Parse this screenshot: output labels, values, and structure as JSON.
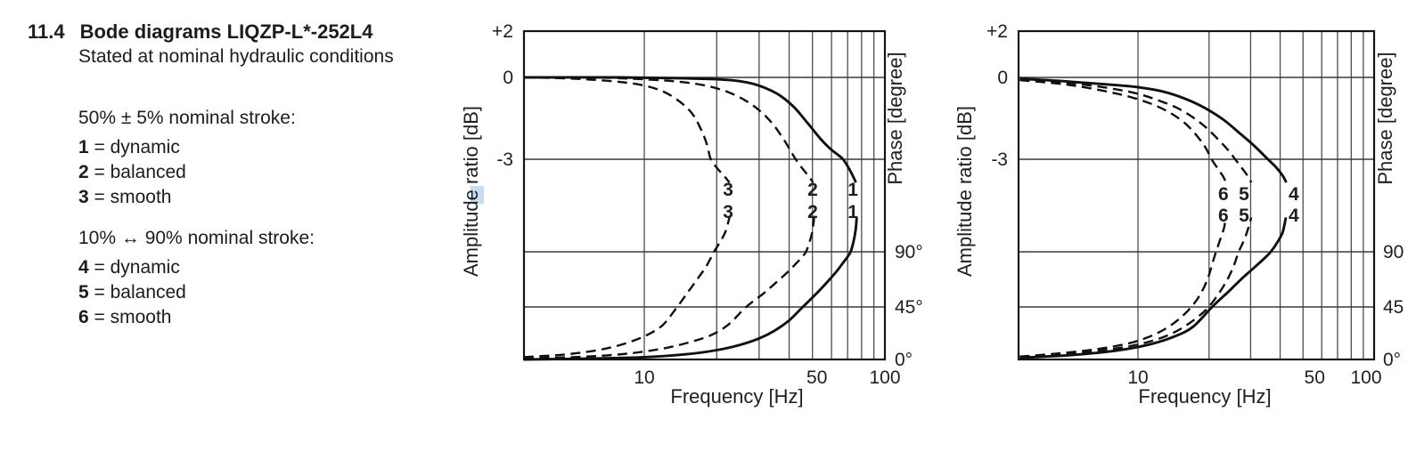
{
  "document": {
    "section_number": "11.4",
    "title": "Bode diagrams LIQZP-L*-252L4",
    "subtitle": "Stated at nominal hydraulic conditions",
    "legend_groups": [
      {
        "heading": "50% ± 5% nominal stroke:",
        "items": [
          {
            "key": "1",
            "separator": " = ",
            "label": "dynamic"
          },
          {
            "key": "2",
            "separator": " = ",
            "label": "balanced"
          },
          {
            "key": "3",
            "separator": " = ",
            "label": "smooth"
          }
        ]
      },
      {
        "heading": "10% ↔ 90% nominal stroke:",
        "items": [
          {
            "key": "4",
            "separator": " = ",
            "label": "dynamic"
          },
          {
            "key": "5",
            "separator": " = ",
            "label": "balanced"
          },
          {
            "key": "6",
            "separator": " = ",
            "label": "smooth"
          }
        ]
      }
    ]
  },
  "chart_data": [
    {
      "type": "line",
      "stroke_condition": "50% ± 5% nominal stroke",
      "xlabel": "Frequency [Hz]",
      "ylabel_left": "Amplitude ratio [dB]",
      "ylabel_right": "Phase [degree]",
      "x_scale": "log",
      "x_range_hz": [
        3.16,
        100
      ],
      "grid": true,
      "x_gridlines_hz": [
        10,
        20,
        30,
        40,
        50,
        60,
        70,
        80,
        90,
        100
      ],
      "x_ticks": [
        {
          "f": 10,
          "label": "10"
        },
        {
          "f": 50,
          "label": "50"
        },
        {
          "f": 100,
          "label": "100"
        }
      ],
      "amplitude_ticks": [
        {
          "db": 2,
          "label": "+2"
        },
        {
          "db": 0,
          "label": "0"
        },
        {
          "db": -3,
          "label": "-3"
        }
      ],
      "amplitude_gridlines_db": [
        0,
        -3
      ],
      "phase_ticks": [
        {
          "deg": 90,
          "label": "90°"
        },
        {
          "deg": 45,
          "label": "45°"
        },
        {
          "deg": 0,
          "label": "0°"
        }
      ],
      "phase_gridlines_deg": [
        90,
        45
      ],
      "curves": [
        {
          "id": "3",
          "meaning": "smooth",
          "style": "dashed",
          "f_minus3db_hz": 18.9,
          "f_phase90_hz": 19.5,
          "amplitude_db_points": [
            [
              3.16,
              0
            ],
            [
              4.5,
              -0.03
            ],
            [
              6,
              -0.08
            ],
            [
              8,
              -0.17
            ],
            [
              10,
              -0.3
            ],
            [
              12,
              -0.52
            ],
            [
              14,
              -0.88
            ],
            [
              15.8,
              -1.32
            ],
            [
              17.2,
              -1.9
            ],
            [
              18.2,
              -2.45
            ],
            [
              18.9,
              -3.0
            ],
            [
              20.2,
              -3.35
            ],
            [
              21.5,
              -3.62
            ],
            [
              22.6,
              -3.85
            ]
          ],
          "phase_deg_points": [
            [
              3.16,
              2
            ],
            [
              4.5,
              4
            ],
            [
              6,
              7
            ],
            [
              7.5,
              11
            ],
            [
              9,
              16
            ],
            [
              10.5,
              22
            ],
            [
              12,
              30
            ],
            [
              13.7,
              45
            ],
            [
              15.3,
              58
            ],
            [
              16.8,
              69
            ],
            [
              18.2,
              79
            ],
            [
              19.5,
              90
            ],
            [
              20.8,
              99
            ],
            [
              21.8,
              107
            ],
            [
              22.6,
              118
            ]
          ]
        },
        {
          "id": "2",
          "meaning": "balanced",
          "style": "dashed",
          "f_minus3db_hz": 42.6,
          "f_phase90_hz": 47,
          "amplitude_db_points": [
            [
              3.16,
              0
            ],
            [
              6,
              0
            ],
            [
              10,
              -0.07
            ],
            [
              14,
              -0.16
            ],
            [
              18,
              -0.3
            ],
            [
              22,
              -0.52
            ],
            [
              26,
              -0.82
            ],
            [
              30,
              -1.2
            ],
            [
              34,
              -1.68
            ],
            [
              37.5,
              -2.2
            ],
            [
              40,
              -2.6
            ],
            [
              42.6,
              -3.0
            ],
            [
              45.5,
              -3.35
            ],
            [
              48.2,
              -3.62
            ],
            [
              50.3,
              -3.85
            ]
          ],
          "phase_deg_points": [
            [
              3.16,
              1
            ],
            [
              5,
              2
            ],
            [
              7,
              3.5
            ],
            [
              9.4,
              6
            ],
            [
              12.4,
              10
            ],
            [
              15.6,
              15
            ],
            [
              19,
              21
            ],
            [
              22.4,
              30
            ],
            [
              26.5,
              45
            ],
            [
              31.3,
              56
            ],
            [
              35.8,
              66
            ],
            [
              39.7,
              74
            ],
            [
              43,
              81
            ],
            [
              45.4,
              86
            ],
            [
              47,
              90
            ],
            [
              48.6,
              98
            ],
            [
              50,
              107
            ],
            [
              50.8,
              118
            ]
          ]
        },
        {
          "id": "1",
          "meaning": "dynamic",
          "style": "solid",
          "f_minus3db_hz": 67,
          "f_phase90_hz": 72,
          "amplitude_db_points": [
            [
              3.16,
              0
            ],
            [
              8,
              0
            ],
            [
              14,
              -0.03
            ],
            [
              20,
              -0.07
            ],
            [
              25,
              -0.14
            ],
            [
              30,
              -0.3
            ],
            [
              36,
              -0.62
            ],
            [
              42,
              -1.1
            ],
            [
              48,
              -1.7
            ],
            [
              54,
              -2.25
            ],
            [
              59,
              -2.6
            ],
            [
              63,
              -2.8
            ],
            [
              67,
              -3.0
            ],
            [
              70.5,
              -3.3
            ],
            [
              73.5,
              -3.6
            ],
            [
              75.8,
              -3.85
            ]
          ],
          "phase_deg_points": [
            [
              3.16,
              0
            ],
            [
              6,
              0.8
            ],
            [
              10,
              2
            ],
            [
              15,
              4.5
            ],
            [
              20,
              8
            ],
            [
              25,
              12.5
            ],
            [
              30,
              18
            ],
            [
              35,
              25
            ],
            [
              40,
              33.5
            ],
            [
              45.6,
              45
            ],
            [
              52,
              56
            ],
            [
              58,
              66
            ],
            [
              63,
              74
            ],
            [
              67,
              81
            ],
            [
              70,
              86
            ],
            [
              72,
              90
            ],
            [
              74,
              98
            ],
            [
              75.5,
              107
            ],
            [
              76.4,
              118
            ]
          ]
        }
      ],
      "curve_labels": [
        {
          "text": "3",
          "f_hz": 22.3,
          "row": "upper"
        },
        {
          "text": "2",
          "f_hz": 50.1,
          "row": "upper"
        },
        {
          "text": "1",
          "f_hz": 73.6,
          "row": "upper"
        },
        {
          "text": "3",
          "f_hz": 22.3,
          "row": "lower"
        },
        {
          "text": "2",
          "f_hz": 50.1,
          "row": "lower"
        },
        {
          "text": "1",
          "f_hz": 73.6,
          "row": "lower"
        }
      ]
    },
    {
      "type": "line",
      "stroke_condition": "10% ↔ 90% nominal stroke",
      "xlabel": "Frequency [Hz]",
      "ylabel_left": "Amplitude ratio [dB]",
      "ylabel_right": "Phase [degree]",
      "x_scale": "log",
      "x_range_hz": [
        3.16,
        100
      ],
      "grid": true,
      "x_gridlines_hz": [
        10,
        20,
        30,
        40,
        50,
        60,
        70,
        80,
        90,
        100
      ],
      "x_ticks": [
        {
          "f": 10,
          "label": "10"
        },
        {
          "f": 50,
          "label": "50"
        },
        {
          "f": 100,
          "label": "100"
        }
      ],
      "amplitude_ticks": [
        {
          "db": 2,
          "label": "+2"
        },
        {
          "db": 0,
          "label": "0"
        },
        {
          "db": -3,
          "label": "-3"
        }
      ],
      "amplitude_gridlines_db": [
        0,
        -3
      ],
      "phase_ticks": [
        {
          "deg": 90,
          "label": "90"
        },
        {
          "deg": 45,
          "label": "45"
        },
        {
          "deg": 0,
          "label": "0°"
        }
      ],
      "phase_gridlines_deg": [
        90,
        45
      ],
      "curves": [
        {
          "id": "6",
          "meaning": "smooth",
          "style": "dashed",
          "f_minus3db_hz": 20.5,
          "f_phase90_hz": 21.4,
          "amplitude_db_points": [
            [
              3.16,
              -0.1
            ],
            [
              4.5,
              -0.22
            ],
            [
              6,
              -0.37
            ],
            [
              8,
              -0.58
            ],
            [
              10,
              -0.8
            ],
            [
              12,
              -1.05
            ],
            [
              14,
              -1.35
            ],
            [
              16,
              -1.72
            ],
            [
              18,
              -2.2
            ],
            [
              19.4,
              -2.6
            ],
            [
              20.5,
              -3.0
            ],
            [
              21.8,
              -3.35
            ],
            [
              22.9,
              -3.62
            ],
            [
              23.6,
              -3.85
            ]
          ],
          "phase_deg_points": [
            [
              3.16,
              2.5
            ],
            [
              4.5,
              5
            ],
            [
              6.5,
              8.5
            ],
            [
              9,
              13.5
            ],
            [
              11,
              19
            ],
            [
              13,
              26
            ],
            [
              15,
              35
            ],
            [
              17,
              46
            ],
            [
              18.7,
              58
            ],
            [
              19.9,
              70
            ],
            [
              20.7,
              81
            ],
            [
              21.4,
              90
            ],
            [
              22.3,
              100
            ],
            [
              23.1,
              109
            ],
            [
              23.6,
              118
            ]
          ]
        },
        {
          "id": "5",
          "meaning": "balanced",
          "style": "dashed",
          "f_minus3db_hz": 25.8,
          "f_phase90_hz": 26.7,
          "amplitude_db_points": [
            [
              3.16,
              -0.07
            ],
            [
              4.5,
              -0.16
            ],
            [
              6,
              -0.27
            ],
            [
              8,
              -0.43
            ],
            [
              10,
              -0.6
            ],
            [
              12,
              -0.82
            ],
            [
              14.5,
              -1.1
            ],
            [
              17,
              -1.45
            ],
            [
              19.5,
              -1.85
            ],
            [
              22,
              -2.3
            ],
            [
              24,
              -2.65
            ],
            [
              25.8,
              -3.0
            ],
            [
              27.6,
              -3.33
            ],
            [
              29.2,
              -3.62
            ],
            [
              30.2,
              -3.85
            ]
          ],
          "phase_deg_points": [
            [
              3.16,
              2
            ],
            [
              4.5,
              4
            ],
            [
              6.5,
              7
            ],
            [
              9,
              11
            ],
            [
              11.5,
              16
            ],
            [
              14,
              22.5
            ],
            [
              16.5,
              31
            ],
            [
              19.5,
              43
            ],
            [
              22,
              56
            ],
            [
              24,
              68
            ],
            [
              25.5,
              79
            ],
            [
              26.7,
              90
            ],
            [
              28.2,
              100
            ],
            [
              29.4,
              110
            ],
            [
              30.2,
              118
            ]
          ]
        },
        {
          "id": "4",
          "meaning": "dynamic",
          "style": "solid",
          "f_minus3db_hz": 35.5,
          "f_phase90_hz": 36.5,
          "amplitude_db_points": [
            [
              3.16,
              -0.05
            ],
            [
              4.5,
              -0.12
            ],
            [
              6,
              -0.2
            ],
            [
              8,
              -0.28
            ],
            [
              10,
              -0.36
            ],
            [
              12.5,
              -0.5
            ],
            [
              15.5,
              -0.75
            ],
            [
              19,
              -1.1
            ],
            [
              23,
              -1.55
            ],
            [
              27,
              -2.05
            ],
            [
              31,
              -2.5
            ],
            [
              35.5,
              -3.0
            ],
            [
              38.5,
              -3.3
            ],
            [
              41,
              -3.6
            ],
            [
              42.5,
              -3.85
            ]
          ],
          "phase_deg_points": [
            [
              3.16,
              1.5
            ],
            [
              5,
              3.5
            ],
            [
              7,
              6
            ],
            [
              9,
              9
            ],
            [
              11.5,
              13.5
            ],
            [
              14.2,
              19.5
            ],
            [
              17.1,
              28
            ],
            [
              20.6,
              45
            ],
            [
              24,
              57
            ],
            [
              27.5,
              68
            ],
            [
              31,
              77
            ],
            [
              34,
              84
            ],
            [
              36.5,
              90
            ],
            [
              39,
              98
            ],
            [
              41,
              106
            ],
            [
              42.3,
              118
            ]
          ]
        }
      ],
      "curve_labels": [
        {
          "text": "6",
          "f_hz": 23.0,
          "row": "upper"
        },
        {
          "text": "5",
          "f_hz": 28.1,
          "row": "upper"
        },
        {
          "text": "4",
          "f_hz": 45.7,
          "row": "upper"
        },
        {
          "text": "6",
          "f_hz": 23.0,
          "row": "lower"
        },
        {
          "text": "5",
          "f_hz": 28.1,
          "row": "lower"
        },
        {
          "text": "4",
          "f_hz": 45.7,
          "row": "lower"
        }
      ]
    }
  ]
}
